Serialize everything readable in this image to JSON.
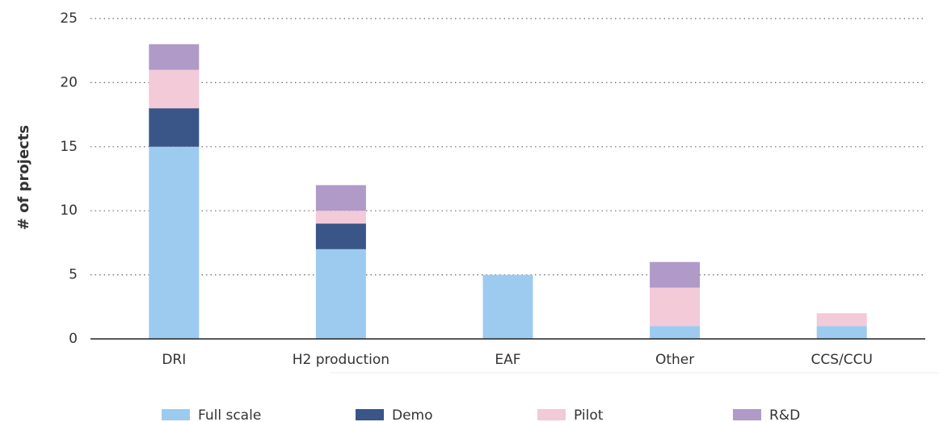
{
  "chart_data": {
    "type": "stacked_bar",
    "y_label": "# of projects",
    "categories": [
      "DRI",
      "H2 production",
      "EAF",
      "Other",
      "CCS/CCU"
    ],
    "series": [
      {
        "name": "Full scale",
        "color": "#9ccbef",
        "values": [
          15,
          7,
          5,
          1,
          1
        ]
      },
      {
        "name": "Demo",
        "color": "#3a5588",
        "values": [
          3,
          2,
          0,
          0,
          0
        ]
      },
      {
        "name": "Pilot",
        "color": "#f2cad8",
        "values": [
          3,
          1,
          0,
          3,
          1
        ]
      },
      {
        "name": "R&D",
        "color": "#b09ac8",
        "values": [
          2,
          2,
          0,
          2,
          0
        ]
      }
    ],
    "ylim": [
      0,
      25
    ],
    "yticks": [
      0,
      5,
      10,
      15,
      20,
      25
    ],
    "grid": true,
    "legend": "bottom"
  }
}
